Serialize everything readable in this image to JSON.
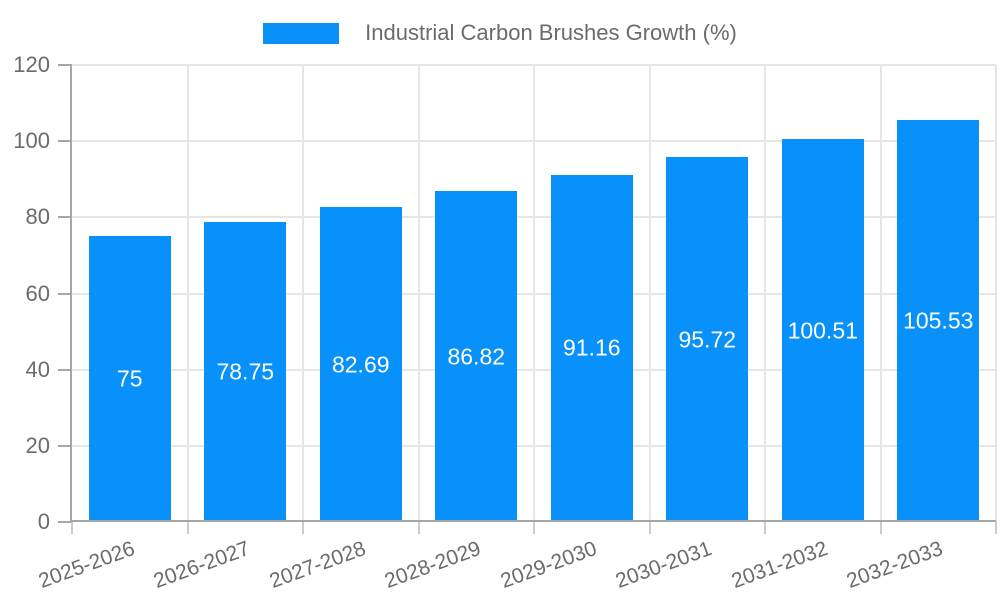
{
  "chart_data": {
    "type": "bar",
    "title": "Industrial Carbon Brushes Growth (%)",
    "categories": [
      "2025-2026",
      "2026-2027",
      "2027-2028",
      "2028-2029",
      "2029-2030",
      "2030-2031",
      "2031-2032",
      "2032-2033"
    ],
    "values": [
      75,
      78.75,
      82.69,
      86.82,
      91.16,
      95.72,
      100.51,
      105.53
    ],
    "value_labels": [
      "75",
      "78.75",
      "82.69",
      "86.82",
      "91.16",
      "95.72",
      "100.51",
      "105.53"
    ],
    "xlabel": "",
    "ylabel": "",
    "ylim": [
      0,
      120
    ],
    "yticks": [
      0,
      20,
      40,
      60,
      80,
      100,
      120
    ],
    "grid": true,
    "legend_position": "top",
    "colors": {
      "bar": "#0890fb",
      "value_label": "#ffffff",
      "tick_label": "#6b6b6b",
      "gridline": "#e6e6e6",
      "axis": "#a6a6a6",
      "x_tick": "#cccccc",
      "background": "#ffffff"
    }
  }
}
